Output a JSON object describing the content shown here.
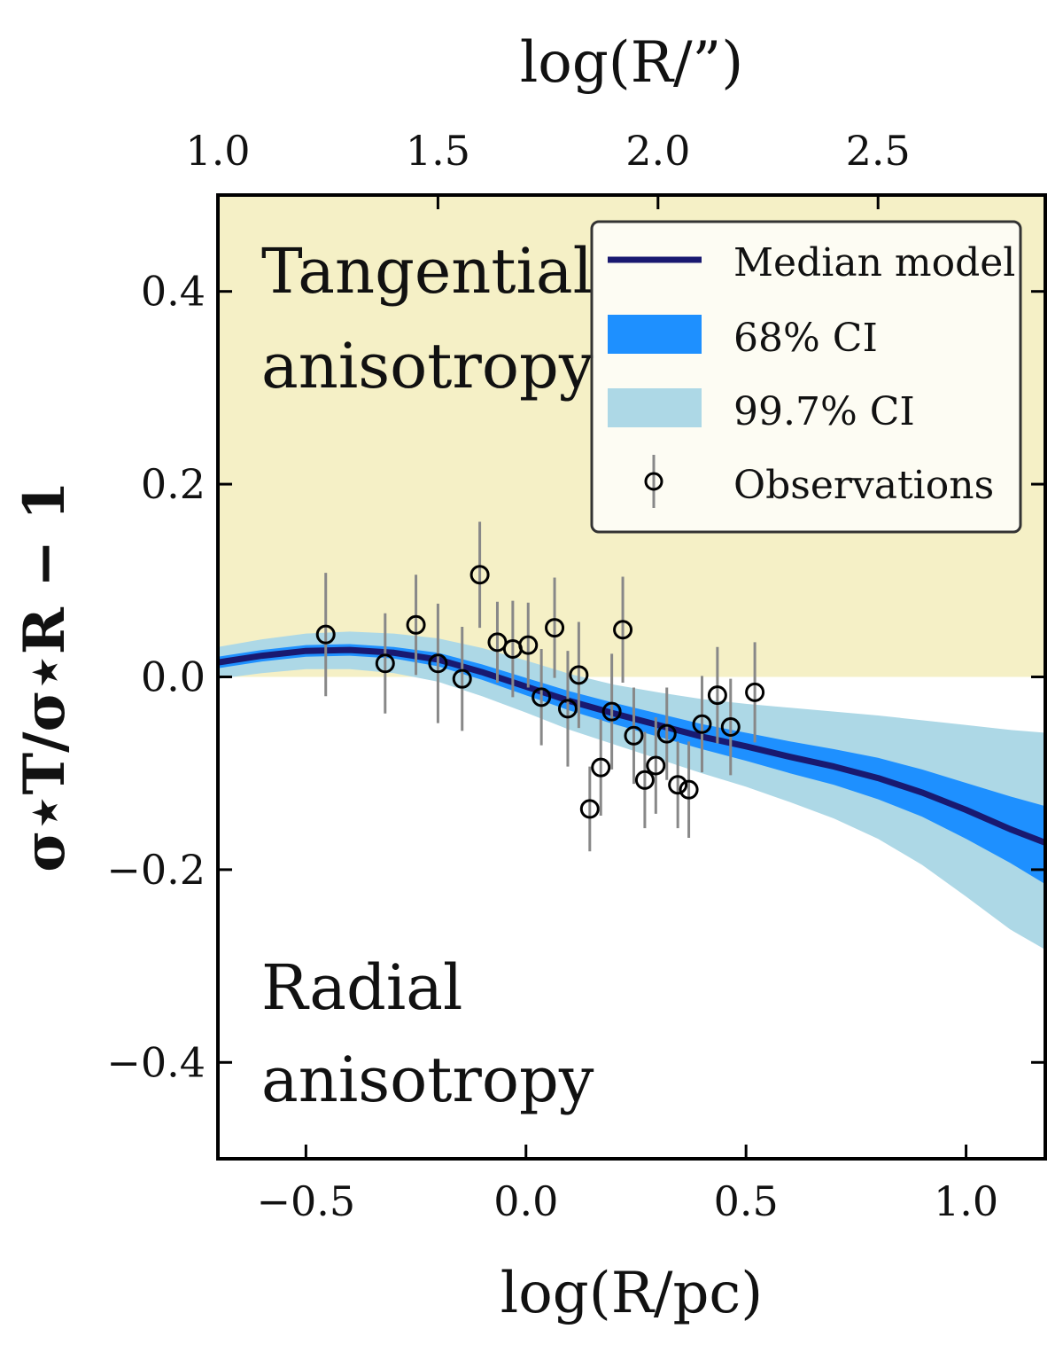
{
  "chart_data": {
    "type": "line",
    "title": "",
    "xlabel": "log(R/pc)",
    "ylabel": "σ⋆T/σ⋆R − 1",
    "x2label": "log(R/”)",
    "xlim": [
      -0.7,
      1.18
    ],
    "ylim": [
      -0.5,
      0.5
    ],
    "x2lim": [
      1.0,
      2.88
    ],
    "xticks": [
      -0.5,
      0.0,
      0.5,
      1.0
    ],
    "xtick_labels": [
      "−0.5",
      "0.0",
      "0.5",
      "1.0"
    ],
    "yticks": [
      -0.4,
      -0.2,
      0.0,
      0.2,
      0.4
    ],
    "ytick_labels": [
      "−0.4",
      "−0.2",
      "0.0",
      "0.2",
      "0.4"
    ],
    "x2ticks": [
      1.0,
      1.5,
      2.0,
      2.5
    ],
    "x2tick_labels": [
      "1.0",
      "1.5",
      "2.0",
      "2.5"
    ],
    "grid": false,
    "legend_position": "top-right",
    "colors": {
      "tangential_region": "#f5f0c6",
      "median": "#191970",
      "ci68": "#1e90ff",
      "ci997": "#add8e6",
      "observations": "#000000",
      "errorbar": "#888888"
    },
    "regions": [
      {
        "name": "Tangential",
        "label_line1": "Tangential",
        "label_line2": "anisotropy",
        "y_range": [
          0.0,
          0.5
        ]
      },
      {
        "name": "Radial",
        "label_line1": "Radial",
        "label_line2": "anisotropy",
        "y_range": [
          -0.5,
          0.0
        ]
      }
    ],
    "legend": [
      {
        "key": "median",
        "label": "Median model"
      },
      {
        "key": "ci68",
        "label": "68% CI"
      },
      {
        "key": "ci997",
        "label": "99.7% CI"
      },
      {
        "key": "observations",
        "label": "Observations"
      }
    ],
    "series": [
      {
        "name": "Median model",
        "x": [
          -0.7,
          -0.6,
          -0.5,
          -0.4,
          -0.3,
          -0.2,
          -0.1,
          0.0,
          0.1,
          0.2,
          0.3,
          0.4,
          0.5,
          0.6,
          0.7,
          0.8,
          0.9,
          1.0,
          1.1,
          1.18
        ],
        "median": [
          0.015,
          0.022,
          0.027,
          0.028,
          0.025,
          0.018,
          0.005,
          -0.01,
          -0.025,
          -0.038,
          -0.05,
          -0.062,
          -0.072,
          -0.083,
          -0.093,
          -0.105,
          -0.12,
          -0.138,
          -0.158,
          -0.172
        ],
        "ci68_lower": [
          0.009,
          0.016,
          0.021,
          0.022,
          0.019,
          0.011,
          -0.003,
          -0.019,
          -0.035,
          -0.049,
          -0.062,
          -0.075,
          -0.087,
          -0.1,
          -0.112,
          -0.127,
          -0.145,
          -0.168,
          -0.193,
          -0.215
        ],
        "ci68_upper": [
          0.021,
          0.028,
          0.033,
          0.034,
          0.031,
          0.025,
          0.013,
          -0.001,
          -0.015,
          -0.027,
          -0.038,
          -0.049,
          -0.058,
          -0.067,
          -0.075,
          -0.084,
          -0.096,
          -0.11,
          -0.124,
          -0.134
        ],
        "ci997_lower": [
          -0.002,
          0.004,
          0.008,
          0.008,
          0.004,
          -0.005,
          -0.02,
          -0.037,
          -0.055,
          -0.07,
          -0.085,
          -0.1,
          -0.114,
          -0.13,
          -0.147,
          -0.168,
          -0.195,
          -0.228,
          -0.262,
          -0.283
        ],
        "ci997_upper": [
          0.031,
          0.039,
          0.045,
          0.047,
          0.045,
          0.04,
          0.03,
          0.017,
          0.003,
          -0.008,
          -0.016,
          -0.023,
          -0.028,
          -0.032,
          -0.036,
          -0.04,
          -0.045,
          -0.05,
          -0.055,
          -0.058
        ]
      }
    ],
    "observations": [
      {
        "x": -0.455,
        "y": 0.044,
        "err": 0.064
      },
      {
        "x": -0.32,
        "y": 0.014,
        "err": 0.052
      },
      {
        "x": -0.25,
        "y": 0.054,
        "err": 0.052
      },
      {
        "x": -0.2,
        "y": 0.014,
        "err": 0.062
      },
      {
        "x": -0.145,
        "y": -0.002,
        "err": 0.054
      },
      {
        "x": -0.105,
        "y": 0.106,
        "err": 0.055
      },
      {
        "x": -0.065,
        "y": 0.036,
        "err": 0.042
      },
      {
        "x": -0.03,
        "y": 0.029,
        "err": 0.05
      },
      {
        "x": 0.005,
        "y": 0.033,
        "err": 0.044
      },
      {
        "x": 0.035,
        "y": -0.021,
        "err": 0.05
      },
      {
        "x": 0.065,
        "y": 0.051,
        "err": 0.052
      },
      {
        "x": 0.095,
        "y": -0.033,
        "err": 0.06
      },
      {
        "x": 0.12,
        "y": 0.002,
        "err": 0.055
      },
      {
        "x": 0.145,
        "y": -0.137,
        "err": 0.044
      },
      {
        "x": 0.17,
        "y": -0.094,
        "err": 0.05
      },
      {
        "x": 0.195,
        "y": -0.036,
        "err": 0.06
      },
      {
        "x": 0.22,
        "y": 0.049,
        "err": 0.055
      },
      {
        "x": 0.245,
        "y": -0.061,
        "err": 0.05
      },
      {
        "x": 0.27,
        "y": -0.107,
        "err": 0.05
      },
      {
        "x": 0.295,
        "y": -0.092,
        "err": 0.05
      },
      {
        "x": 0.32,
        "y": -0.059,
        "err": 0.048
      },
      {
        "x": 0.345,
        "y": -0.112,
        "err": 0.045
      },
      {
        "x": 0.37,
        "y": -0.117,
        "err": 0.05
      },
      {
        "x": 0.4,
        "y": -0.049,
        "err": 0.05
      },
      {
        "x": 0.435,
        "y": -0.019,
        "err": 0.05
      },
      {
        "x": 0.465,
        "y": -0.052,
        "err": 0.05
      },
      {
        "x": 0.52,
        "y": -0.016,
        "err": 0.052
      }
    ]
  }
}
